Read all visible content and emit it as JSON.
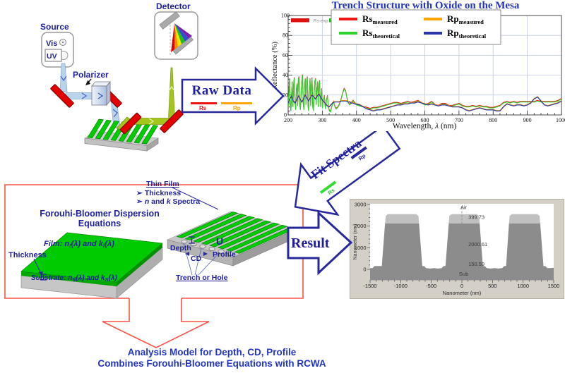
{
  "schematic": {
    "source": "Source",
    "vis": "Vis",
    "uv": "UV",
    "polarizer": "Polarizer",
    "detector": "Detector"
  },
  "raw_arrow": {
    "title": "Raw Data",
    "rs": "Rs",
    "rp": "Rp"
  },
  "fit_arrow": {
    "title": "Fit Spectra",
    "rs": "Rs",
    "rp": "Rp"
  },
  "result_arrow": {
    "label": "Result"
  },
  "fb": {
    "title": "Forouhi-Bloomer Dispersion Equations",
    "thickness": "Thickness",
    "film": {
      "p": "Film: ",
      "n": "n",
      "ns": "f",
      "m": "(λ) and ",
      "k": "k",
      "ks": "f",
      "e": "(λ)"
    },
    "substrate": {
      "p": "Substrate: ",
      "n": "n",
      "ns": "S",
      "m": "(λ) and ",
      "k": "k",
      "ks": "S",
      "e": "(λ)"
    }
  },
  "thinfilm": {
    "title": "Thin Film",
    "bullet": "➢",
    "b1": "Thickness",
    "b2": {
      "n": "n",
      "m": " and ",
      "k": "k",
      "e": " Spectra"
    }
  },
  "grating": {
    "depth": "Depth",
    "cd": "CD",
    "profile": "Profile",
    "profile_glyph": "U",
    "trench": "Trench or Hole"
  },
  "footer": {
    "line1": "Analysis Model for Depth, CD, Profile",
    "line2": "Combines Forouhi-Bloomer Equations with RCWA"
  },
  "chart_data": [
    {
      "type": "line",
      "title": "Trench Structure with Oxide on the Mesa",
      "xlabel_parts": [
        {
          "t": "Wavelength, ",
          "i": 0
        },
        {
          "t": "λ",
          "i": 1
        },
        {
          "t": " (nm)",
          "i": 0
        }
      ],
      "ylabel": "Reflectance (%)",
      "xlim": [
        200,
        1000
      ],
      "ylim": [
        0,
        100
      ],
      "xticks": [
        200,
        300,
        400,
        500,
        600,
        700,
        800,
        900,
        1000
      ],
      "yticks": [
        0,
        20,
        40,
        60,
        80,
        100
      ],
      "x_minor": 20,
      "y_minor": 4,
      "grid": true,
      "legend_position": "top",
      "strip": [
        {
          "color": "#dd1111",
          "label": "Rs-exp"
        },
        {
          "color": "#19c419",
          "label": ""
        }
      ],
      "legend": [
        {
          "main": "Rs",
          "sub": "measured",
          "color": "#ee1515"
        },
        {
          "main": "Rp",
          "sub": "measured",
          "color": "#ffa400"
        },
        {
          "main": "Rs",
          "sub": "theoretical",
          "color": "#2ed32e"
        },
        {
          "main": "Rp",
          "sub": "theoretical",
          "color": "#2b35a8"
        }
      ],
      "series": [
        {
          "name": "Rs measured",
          "color": "#ee1515",
          "data": "rs",
          "dy": 0.9,
          "w": 1.1
        },
        {
          "name": "Rs theoretical",
          "color": "#2ed32e",
          "data": "rs",
          "dy": 0,
          "w": 1.1
        },
        {
          "name": "Rp measured",
          "color": "#ffa400",
          "data": "rp",
          "dy": 0.7,
          "w": 1.1
        },
        {
          "name": "Rp theoretical",
          "color": "#2b35a8",
          "data": "rp",
          "dy": 0,
          "w": 1.2
        }
      ],
      "rs": [
        [
          200,
          8
        ],
        [
          202,
          22
        ],
        [
          204,
          36
        ],
        [
          206,
          10
        ],
        [
          208,
          4
        ],
        [
          210,
          20
        ],
        [
          212,
          33
        ],
        [
          214,
          8
        ],
        [
          216,
          30
        ],
        [
          218,
          37
        ],
        [
          220,
          12
        ],
        [
          222,
          5
        ],
        [
          224,
          25
        ],
        [
          226,
          31
        ],
        [
          228,
          9
        ],
        [
          230,
          36
        ],
        [
          232,
          38
        ],
        [
          234,
          10
        ],
        [
          236,
          5
        ],
        [
          238,
          22
        ],
        [
          240,
          34
        ],
        [
          242,
          40
        ],
        [
          244,
          12
        ],
        [
          246,
          5
        ],
        [
          248,
          28
        ],
        [
          250,
          36
        ],
        [
          252,
          10
        ],
        [
          254,
          33
        ],
        [
          256,
          38
        ],
        [
          258,
          9
        ],
        [
          260,
          4
        ],
        [
          262,
          24
        ],
        [
          264,
          36
        ],
        [
          266,
          9
        ],
        [
          268,
          30
        ],
        [
          270,
          37
        ],
        [
          272,
          8
        ],
        [
          274,
          4
        ],
        [
          276,
          20
        ],
        [
          278,
          33
        ],
        [
          280,
          36
        ],
        [
          282,
          10
        ],
        [
          284,
          25
        ],
        [
          286,
          33
        ],
        [
          288,
          8
        ],
        [
          290,
          30
        ],
        [
          292,
          34
        ],
        [
          294,
          8
        ],
        [
          296,
          18
        ],
        [
          298,
          26
        ],
        [
          300,
          7
        ],
        [
          303,
          14
        ],
        [
          306,
          19
        ],
        [
          309,
          6
        ],
        [
          312,
          14
        ],
        [
          315,
          19
        ],
        [
          318,
          7
        ],
        [
          321,
          4
        ],
        [
          324,
          3
        ],
        [
          327,
          7
        ],
        [
          330,
          11
        ],
        [
          333,
          13
        ],
        [
          336,
          9
        ],
        [
          340,
          6
        ],
        [
          344,
          7
        ],
        [
          348,
          9
        ],
        [
          352,
          12
        ],
        [
          356,
          17
        ],
        [
          360,
          22
        ],
        [
          364,
          26
        ],
        [
          368,
          24
        ],
        [
          372,
          17
        ],
        [
          376,
          12
        ],
        [
          380,
          10
        ],
        [
          385,
          12
        ],
        [
          390,
          14
        ],
        [
          395,
          12
        ],
        [
          400,
          10
        ],
        [
          410,
          9
        ],
        [
          420,
          8
        ],
        [
          430,
          7
        ],
        [
          440,
          6
        ],
        [
          450,
          7
        ],
        [
          460,
          7
        ],
        [
          470,
          8
        ],
        [
          480,
          9
        ],
        [
          490,
          10
        ],
        [
          500,
          11
        ],
        [
          510,
          12
        ],
        [
          520,
          12
        ],
        [
          530,
          11
        ],
        [
          540,
          12
        ],
        [
          550,
          13
        ],
        [
          560,
          12
        ],
        [
          570,
          13
        ],
        [
          580,
          14
        ],
        [
          590,
          12
        ],
        [
          600,
          10
        ],
        [
          610,
          11
        ],
        [
          620,
          13
        ],
        [
          630,
          10
        ],
        [
          640,
          9
        ],
        [
          650,
          11
        ],
        [
          660,
          11
        ],
        [
          670,
          9
        ],
        [
          680,
          9
        ],
        [
          690,
          10
        ],
        [
          700,
          11
        ],
        [
          710,
          9
        ],
        [
          720,
          8
        ],
        [
          730,
          8
        ],
        [
          740,
          9
        ],
        [
          750,
          8
        ],
        [
          760,
          9
        ],
        [
          770,
          8
        ],
        [
          780,
          8
        ],
        [
          790,
          7
        ],
        [
          800,
          7
        ],
        [
          810,
          8
        ],
        [
          820,
          9
        ],
        [
          830,
          12
        ],
        [
          840,
          13
        ],
        [
          850,
          12
        ],
        [
          860,
          13
        ],
        [
          870,
          12
        ],
        [
          880,
          13
        ],
        [
          890,
          13
        ],
        [
          900,
          13
        ],
        [
          910,
          13
        ],
        [
          920,
          13
        ],
        [
          930,
          14
        ],
        [
          940,
          13
        ],
        [
          950,
          13
        ],
        [
          960,
          13
        ],
        [
          970,
          13
        ],
        [
          980,
          13
        ],
        [
          990,
          14
        ],
        [
          1000,
          16
        ]
      ],
      "rp": [
        [
          200,
          12
        ],
        [
          205,
          16
        ],
        [
          210,
          19
        ],
        [
          215,
          14
        ],
        [
          220,
          12
        ],
        [
          225,
          15
        ],
        [
          230,
          19
        ],
        [
          235,
          16
        ],
        [
          240,
          13
        ],
        [
          245,
          16
        ],
        [
          250,
          20
        ],
        [
          255,
          17
        ],
        [
          260,
          14
        ],
        [
          265,
          17
        ],
        [
          270,
          20
        ],
        [
          275,
          18
        ],
        [
          280,
          16
        ],
        [
          285,
          19
        ],
        [
          290,
          21
        ],
        [
          295,
          18
        ],
        [
          300,
          15
        ],
        [
          305,
          13
        ],
        [
          310,
          11
        ],
        [
          315,
          9
        ],
        [
          320,
          8
        ],
        [
          325,
          10
        ],
        [
          330,
          12
        ],
        [
          335,
          13
        ],
        [
          340,
          13
        ],
        [
          345,
          13
        ],
        [
          350,
          13
        ],
        [
          355,
          14
        ],
        [
          360,
          14
        ],
        [
          365,
          14
        ],
        [
          370,
          14
        ],
        [
          375,
          13
        ],
        [
          380,
          13
        ],
        [
          385,
          12
        ],
        [
          390,
          12
        ],
        [
          395,
          11
        ],
        [
          400,
          11
        ],
        [
          410,
          10
        ],
        [
          420,
          8
        ],
        [
          430,
          6
        ],
        [
          440,
          5
        ],
        [
          450,
          4
        ],
        [
          460,
          5
        ],
        [
          470,
          5
        ],
        [
          480,
          6
        ],
        [
          490,
          7
        ],
        [
          500,
          8
        ],
        [
          510,
          9
        ],
        [
          520,
          10
        ],
        [
          530,
          10
        ],
        [
          540,
          11
        ],
        [
          550,
          11
        ],
        [
          560,
          12
        ],
        [
          570,
          12
        ],
        [
          580,
          13
        ],
        [
          590,
          12
        ],
        [
          600,
          11
        ],
        [
          610,
          10
        ],
        [
          620,
          11
        ],
        [
          630,
          10
        ],
        [
          640,
          9
        ],
        [
          650,
          10
        ],
        [
          660,
          10
        ],
        [
          670,
          9
        ],
        [
          680,
          8
        ],
        [
          690,
          8
        ],
        [
          700,
          8
        ],
        [
          710,
          7
        ],
        [
          720,
          5
        ],
        [
          730,
          4
        ],
        [
          740,
          5
        ],
        [
          750,
          6
        ],
        [
          760,
          7
        ],
        [
          770,
          6
        ],
        [
          780,
          5
        ],
        [
          790,
          5
        ],
        [
          800,
          5
        ],
        [
          810,
          4
        ],
        [
          820,
          4
        ],
        [
          830,
          8
        ],
        [
          840,
          11
        ],
        [
          850,
          10
        ],
        [
          860,
          9
        ],
        [
          870,
          10
        ],
        [
          880,
          10
        ],
        [
          890,
          9
        ],
        [
          900,
          10
        ],
        [
          910,
          12
        ],
        [
          920,
          16
        ],
        [
          930,
          18
        ],
        [
          940,
          14
        ],
        [
          950,
          10
        ],
        [
          960,
          9
        ],
        [
          970,
          10
        ],
        [
          980,
          11
        ],
        [
          990,
          12
        ],
        [
          1000,
          14
        ]
      ]
    },
    {
      "type": "area",
      "xlabel": "Nanometer (nm)",
      "ylabel": "Nanometer (nm)",
      "xlim": [
        -1500,
        1500
      ],
      "ylim": [
        -488,
        3030
      ],
      "xticks": [
        -1500,
        -1000,
        -500,
        0,
        500,
        1000,
        1500
      ],
      "yticks": [
        0,
        1000,
        2000,
        3000
      ],
      "x_minor": 100,
      "y_minor": 200,
      "surface": [
        [
          -1500,
          60
        ],
        [
          -1460,
          60
        ],
        [
          -1430,
          150
        ],
        [
          -1340,
          152
        ],
        [
          -1308,
          150
        ],
        [
          -1255,
          2130
        ],
        [
          -700,
          2130
        ],
        [
          -647,
          150
        ],
        [
          -615,
          150
        ],
        [
          -585,
          60
        ],
        [
          -520,
          35
        ],
        [
          -455,
          55
        ],
        [
          -395,
          35
        ],
        [
          -330,
          60
        ],
        [
          -300,
          150
        ],
        [
          -268,
          152
        ],
        [
          -215,
          2130
        ],
        [
          290,
          2130
        ],
        [
          343,
          150
        ],
        [
          375,
          150
        ],
        [
          405,
          60
        ],
        [
          470,
          35
        ],
        [
          535,
          55
        ],
        [
          595,
          35
        ],
        [
          660,
          60
        ],
        [
          690,
          150
        ],
        [
          722,
          152
        ],
        [
          770,
          2130
        ],
        [
          1280,
          2130
        ],
        [
          1333,
          150
        ],
        [
          1365,
          150
        ],
        [
          1395,
          60
        ],
        [
          1445,
          60
        ],
        [
          1500,
          75
        ]
      ],
      "mesa_caps": [
        [
          -1255,
          -700
        ],
        [
          -215,
          290
        ],
        [
          770,
          1280
        ]
      ],
      "cap_shape": {
        "base": 2130,
        "rise": 2470,
        "top": 2550,
        "inset": 45,
        "inset2": 10
      },
      "oxide_thickness": 399.73,
      "mesa_height": 2000.61,
      "bottom_layer": 150.59,
      "annotations": [
        {
          "t": "Air",
          "x": 30,
          "y": 2780,
          "a": "middle"
        },
        {
          "t": "399.73",
          "x": 105,
          "y": 2330,
          "a": "start"
        },
        {
          "t": "2000.61",
          "x": 105,
          "y": 1080,
          "a": "start"
        },
        {
          "t": "150.59",
          "x": 105,
          "y": 160,
          "a": "start"
        },
        {
          "t": "Sub",
          "x": 30,
          "y": -300,
          "a": "middle"
        }
      ],
      "colors": {
        "panel": "#d4d0c8",
        "body": "#8c8c8c",
        "cap": "#c0c0c0",
        "plot_bg": "#ffffff"
      },
      "zero_line_x": 0
    }
  ]
}
